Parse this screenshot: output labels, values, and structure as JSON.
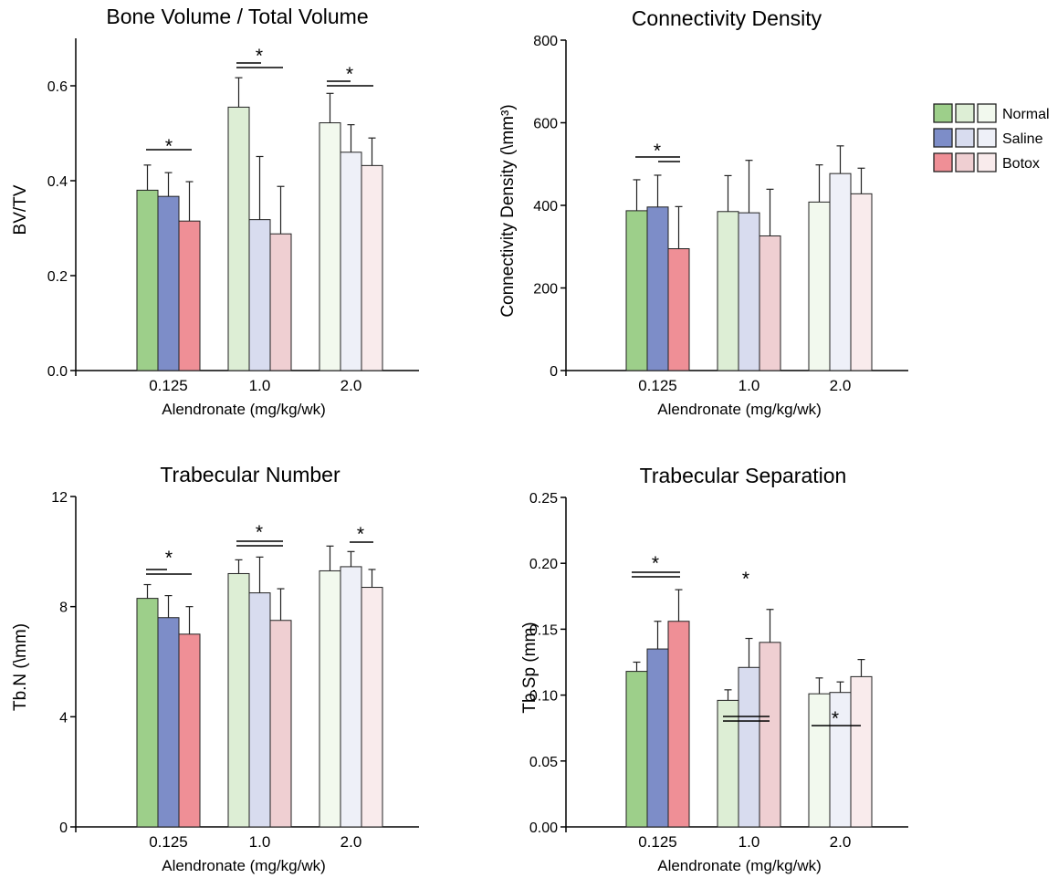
{
  "colors": {
    "Normal": [
      "#9dcf8a",
      "#ddeed5",
      "#f2f9ee"
    ],
    "Saline": [
      "#7d8dc8",
      "#d8dcef",
      "#eef0f8"
    ],
    "Botox": [
      "#ef8f96",
      "#efcfd2",
      "#f9ebec"
    ]
  },
  "legend": {
    "labels": [
      "Normal",
      "Saline",
      "Botox"
    ]
  },
  "chart_data": [
    {
      "type": "bar",
      "title": "Bone Volume / Total Volume",
      "xlabel": "Alendronate (mg/kg/wk)",
      "ylabel": "BV/TV",
      "categories": [
        "0.125",
        "1.0",
        "2.0"
      ],
      "ylim": [
        0,
        0.7
      ],
      "yticks": [
        "0.0",
        "0.2",
        "0.4",
        "0.6"
      ],
      "series": [
        {
          "name": "Normal",
          "values": [
            0.38,
            0.555,
            0.522
          ],
          "errors": [
            0.053,
            0.062,
            0.062
          ]
        },
        {
          "name": "Saline",
          "values": [
            0.367,
            0.318,
            0.46
          ],
          "errors": [
            0.05,
            0.133,
            0.058
          ]
        },
        {
          "name": "Botox",
          "values": [
            0.315,
            0.288,
            0.432
          ],
          "errors": [
            0.083,
            0.1,
            0.058
          ]
        }
      ],
      "annotations": [
        {
          "group": 0,
          "text": "*"
        },
        {
          "group": 1,
          "text": "*"
        },
        {
          "group": 2,
          "text": "*"
        }
      ]
    },
    {
      "type": "bar",
      "title": "Connectivity Density",
      "xlabel": "Alendronate (mg/kg/wk)",
      "ylabel": "Connectivity Density (\\mm³)",
      "categories": [
        "0.125",
        "1.0",
        "2.0"
      ],
      "ylim": [
        0,
        800
      ],
      "yticks": [
        "0",
        "200",
        "400",
        "600",
        "800"
      ],
      "series": [
        {
          "name": "Normal",
          "values": [
            387,
            385,
            408
          ],
          "errors": [
            75,
            87,
            90
          ]
        },
        {
          "name": "Saline",
          "values": [
            396,
            382,
            477
          ],
          "errors": [
            77,
            127,
            67
          ]
        },
        {
          "name": "Botox",
          "values": [
            295,
            326,
            428
          ],
          "errors": [
            102,
            113,
            62
          ]
        }
      ],
      "annotations": [
        {
          "group": 0,
          "text": "*"
        }
      ]
    },
    {
      "type": "bar",
      "title": "Trabecular Number",
      "xlabel": "Alendronate (mg/kg/wk)",
      "ylabel": "Tb.N (\\mm)",
      "categories": [
        "0.125",
        "1.0",
        "2.0"
      ],
      "ylim": [
        0,
        12
      ],
      "yticks": [
        "0",
        "4",
        "8",
        "12"
      ],
      "series": [
        {
          "name": "Normal",
          "values": [
            8.3,
            9.2,
            9.3
          ],
          "errors": [
            0.5,
            0.5,
            0.9
          ]
        },
        {
          "name": "Saline",
          "values": [
            7.6,
            8.5,
            9.45
          ],
          "errors": [
            0.8,
            1.3,
            0.55
          ]
        },
        {
          "name": "Botox",
          "values": [
            7.0,
            7.5,
            8.7
          ],
          "errors": [
            1.0,
            1.15,
            0.65
          ]
        }
      ],
      "annotations": [
        {
          "group": 0,
          "text": "*"
        },
        {
          "group": 1,
          "text": "*"
        },
        {
          "group": 2,
          "text": "*"
        }
      ]
    },
    {
      "type": "bar",
      "title": "Trabecular Separation",
      "xlabel": "Alendronate (mg/kg/wk)",
      "ylabel": "Tb.Sp (mm)",
      "categories": [
        "0.125",
        "1.0",
        "2.0"
      ],
      "ylim": [
        0,
        0.25
      ],
      "yticks": [
        "0.00",
        "0.05",
        "0.10",
        "0.15",
        "0.20",
        "0.25"
      ],
      "series": [
        {
          "name": "Normal",
          "values": [
            0.118,
            0.096,
            0.101
          ],
          "errors": [
            0.007,
            0.008,
            0.012
          ]
        },
        {
          "name": "Saline",
          "values": [
            0.135,
            0.121,
            0.102
          ],
          "errors": [
            0.021,
            0.022,
            0.008
          ]
        },
        {
          "name": "Botox",
          "values": [
            0.156,
            0.14,
            0.114
          ],
          "errors": [
            0.024,
            0.025,
            0.013
          ]
        }
      ],
      "annotations": [
        {
          "group": 0,
          "text": "*"
        },
        {
          "group": 1,
          "text": "*"
        },
        {
          "group": 2,
          "text": "*"
        }
      ]
    }
  ]
}
